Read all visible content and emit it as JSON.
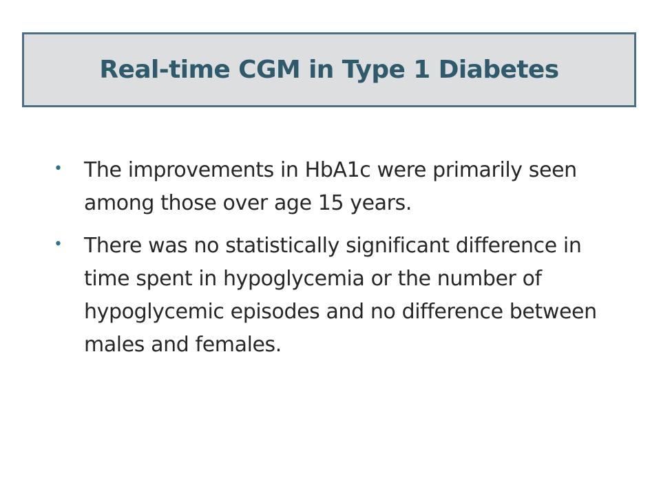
{
  "slide": {
    "title": "Real-time CGM in Type 1 Diabetes",
    "bullet_glyph": "•",
    "bullets": [
      {
        "text": "The improvements in HbA1c were primarily seen among those over age 15 years."
      },
      {
        "text": "There was no statistically significant difference in time spent in hypoglycemia or the number of hypoglycemic episodes and no difference between males and females."
      }
    ]
  },
  "colors": {
    "title_text": "#2e5a6b",
    "title_box_fill": "#dcdedf",
    "title_box_border": "#4a6f82",
    "body_text": "#262626",
    "bullet": "#2e6f8a",
    "background": "#ffffff"
  }
}
